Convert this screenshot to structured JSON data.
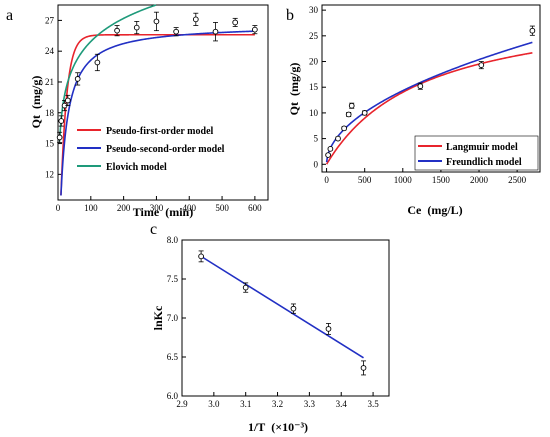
{
  "chart_data": [
    {
      "panel_label": "a",
      "type": "scatter",
      "xlabel": "Time  (min)",
      "ylabel": "Qt  (mg/g)",
      "xlim": [
        0,
        640
      ],
      "ylim": [
        9.5,
        28.5
      ],
      "xticks": [
        "0",
        "100",
        "200",
        "300",
        "400",
        "500",
        "600"
      ],
      "yticks": [
        "12",
        "15",
        "18",
        "21",
        "24",
        "27"
      ],
      "points": {
        "x": [
          5,
          10,
          20,
          30,
          60,
          120,
          180,
          240,
          300,
          360,
          420,
          480,
          540,
          600
        ],
        "y": [
          15.6,
          17.2,
          18.7,
          19.2,
          21.3,
          22.9,
          26.0,
          26.3,
          26.9,
          25.9,
          27.1,
          25.9,
          26.8,
          26.1
        ],
        "err": [
          0.5,
          0.5,
          0.5,
          0.5,
          0.6,
          0.8,
          0.5,
          0.6,
          0.9,
          0.4,
          0.6,
          0.9,
          0.4,
          0.4
        ]
      },
      "series": [
        {
          "name": "Pseudo-first-order model",
          "color": "#e8242c",
          "model": "pfo",
          "qe": 25.6,
          "k": 0.055
        },
        {
          "name": "Pseudo-second-order model",
          "color": "#2230c4",
          "model": "pso",
          "qe": 26.6,
          "k": 0.0025
        },
        {
          "name": "Elovich model",
          "color": "#1e9a7a",
          "model": "elovich",
          "a": 6.0,
          "b": 3.25,
          "alpha": 3.4
        }
      ],
      "legend": "bottom-right",
      "grid": false
    },
    {
      "panel_label": "b",
      "type": "scatter",
      "xlabel": "Ce  (mg/L)",
      "ylabel": "Qt  (mg/g)",
      "xlim": [
        -60,
        2800
      ],
      "ylim": [
        -1.5,
        31
      ],
      "xticks": [
        "0",
        "500",
        "1000",
        "1500",
        "2000",
        "2500"
      ],
      "yticks": [
        "0",
        "5",
        "10",
        "15",
        "20",
        "25",
        "30"
      ],
      "points": {
        "x": [
          20,
          50,
          150,
          230,
          290,
          330,
          500,
          1230,
          2030,
          2700
        ],
        "y": [
          1.8,
          3.0,
          5.0,
          7.0,
          9.7,
          11.4,
          10.0,
          15.2,
          19.3,
          26.0
        ],
        "err": [
          0.2,
          0.2,
          0.3,
          0.3,
          0.4,
          0.5,
          0.4,
          0.6,
          0.7,
          0.9
        ]
      },
      "series": [
        {
          "name": "Langmuir model",
          "color": "#e8242c",
          "model": "langmuir",
          "qm": 32.0,
          "KL": 0.00078
        },
        {
          "name": "Freundlich model",
          "color": "#2230c4",
          "model": "freundlich",
          "KF": 0.43,
          "n": 1.97
        }
      ],
      "legend": "bottom-right",
      "grid": false
    },
    {
      "panel_label": "c",
      "type": "scatter",
      "xlabel": "1/T  (×10⁻³)",
      "ylabel": "lnKc",
      "xlim": [
        2.9,
        3.55
      ],
      "ylim": [
        6.0,
        8.0
      ],
      "xticks": [
        "2.9",
        "3.0",
        "3.1",
        "3.2",
        "3.3",
        "3.4",
        "3.5"
      ],
      "yticks": [
        "6.0",
        "6.5",
        "7.0",
        "7.5",
        "8.0"
      ],
      "points": {
        "x": [
          2.96,
          3.1,
          3.25,
          3.36,
          3.47
        ],
        "y": [
          7.79,
          7.39,
          7.12,
          6.86,
          6.36
        ],
        "err": [
          0.07,
          0.06,
          0.06,
          0.07,
          0.09
        ]
      },
      "series": [
        {
          "name": "",
          "color": "#2230c4",
          "model": "linear",
          "x": [
            2.96,
            3.47
          ],
          "y": [
            7.79,
            6.49
          ]
        }
      ],
      "grid": false
    }
  ]
}
